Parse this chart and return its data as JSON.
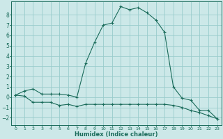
{
  "xlabel": "Humidex (Indice chaleur)",
  "xlim": [
    -0.5,
    23.5
  ],
  "ylim": [
    -2.7,
    9.3
  ],
  "yticks": [
    -2,
    -1,
    0,
    1,
    2,
    3,
    4,
    5,
    6,
    7,
    8
  ],
  "xticks": [
    0,
    1,
    2,
    3,
    4,
    5,
    6,
    7,
    8,
    9,
    10,
    11,
    12,
    13,
    14,
    15,
    16,
    17,
    18,
    19,
    20,
    21,
    22,
    23
  ],
  "bg_color": "#cce8e8",
  "grid_color": "#99cccc",
  "line_color": "#1a6b5a",
  "series1_x": [
    0,
    1,
    2,
    3,
    4,
    5,
    6,
    7,
    8,
    9,
    10,
    11,
    12,
    13,
    14,
    15,
    16,
    17,
    18,
    19,
    20,
    21,
    22,
    23
  ],
  "series1_y": [
    0.2,
    0.6,
    0.8,
    0.3,
    0.3,
    0.3,
    0.2,
    0.0,
    3.3,
    5.3,
    7.0,
    7.2,
    8.8,
    8.5,
    8.7,
    8.2,
    7.5,
    6.3,
    1.0,
    -0.1,
    -0.3,
    -1.3,
    -1.3,
    -2.1
  ],
  "series2_x": [
    0,
    1,
    2,
    3,
    4,
    5,
    6,
    7,
    8,
    9,
    10,
    11,
    12,
    13,
    14,
    15,
    16,
    17,
    18,
    19,
    20,
    21,
    22,
    23
  ],
  "series2_y": [
    0.2,
    0.1,
    -0.5,
    -0.5,
    -0.5,
    -0.8,
    -0.7,
    -0.9,
    -0.7,
    -0.7,
    -0.7,
    -0.7,
    -0.7,
    -0.7,
    -0.7,
    -0.7,
    -0.7,
    -0.7,
    -0.8,
    -1.0,
    -1.3,
    -1.5,
    -1.8,
    -2.1
  ],
  "tick_fontsize": 5,
  "xlabel_fontsize": 6,
  "xlabel_fontweight": "bold",
  "linewidth": 0.8,
  "markersize": 3.0
}
